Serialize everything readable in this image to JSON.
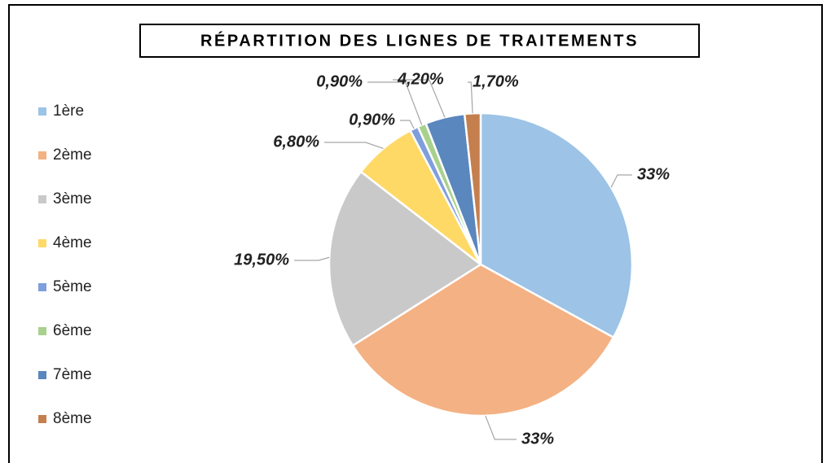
{
  "chart_data": {
    "type": "pie",
    "title": "RÉPARTITION DES LIGNES DE TRAITEMENTS",
    "categories": [
      "1ère",
      "2ème",
      "3ème",
      "4ème",
      "5ème",
      "6ème",
      "7ème",
      "8ème"
    ],
    "values": [
      33,
      33,
      19.5,
      6.8,
      0.9,
      0.9,
      4.2,
      1.7
    ],
    "value_labels": [
      "33%",
      "33%",
      "19,50%",
      "6,80%",
      "0,90%",
      "0,90%",
      "4,20%",
      "1,70%"
    ],
    "colors": [
      "#9dc3e6",
      "#f4b183",
      "#c9c9c9",
      "#ffd966",
      "#7f9fdc",
      "#a9d18e",
      "#5a87bd",
      "#c57f4f"
    ],
    "legend": "left"
  }
}
